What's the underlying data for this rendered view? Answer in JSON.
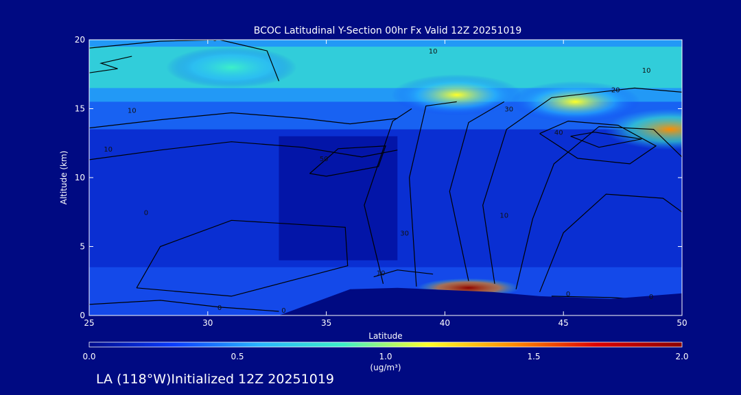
{
  "chart_data": {
    "type": "heatmap",
    "title": "BCOC Latitudinal Y-Section 00hr  Fx Valid 12Z 20251019",
    "xlabel": "Latitude",
    "ylabel": "Altitude (km)",
    "xlim": [
      25,
      50
    ],
    "ylim": [
      0,
      20
    ],
    "xticks": [
      "25",
      "30",
      "35",
      "40",
      "45",
      "50"
    ],
    "yticks": [
      "0",
      "5",
      "10",
      "15",
      "20"
    ],
    "xtick_values": [
      25,
      30,
      35,
      40,
      45,
      50
    ],
    "ytick_values": [
      0,
      5,
      10,
      15,
      20
    ],
    "grid": false,
    "colorbar": {
      "min": 0.0,
      "max": 2.0,
      "ticks": [
        "0.0",
        "0.5",
        "1.0",
        "1.5",
        "2.0"
      ],
      "tick_values": [
        0.0,
        0.5,
        1.0,
        1.5,
        2.0
      ],
      "unit_label": "(ug/m³)",
      "colors": [
        "#000a8c",
        "#0a3cff",
        "#28b4ff",
        "#3cf0c8",
        "#ffff28",
        "#ff8c00",
        "#dc0000",
        "#8c0000"
      ]
    },
    "hotspots": [
      {
        "lat": 41.0,
        "alt": 2.0,
        "value": 1.9
      },
      {
        "lat": 49.5,
        "alt": 13.5,
        "value": 1.4
      },
      {
        "lat": 45.5,
        "alt": 15.5,
        "value": 1.0
      },
      {
        "lat": 31.0,
        "alt": 18.0,
        "value": 0.9
      },
      {
        "lat": 40.5,
        "alt": 16.0,
        "value": 1.0
      }
    ],
    "terrain": [
      [
        25,
        0
      ],
      [
        33,
        0
      ],
      [
        36,
        1.9
      ],
      [
        38,
        2.0
      ],
      [
        42,
        1.7
      ],
      [
        44,
        1.4
      ],
      [
        47,
        1.2
      ],
      [
        50,
        1.6
      ]
    ],
    "contour_labels": [
      {
        "text": "0",
        "lat": 30.3,
        "alt": 19.9
      },
      {
        "text": "10",
        "lat": 39.5,
        "alt": 19.0
      },
      {
        "text": "10",
        "lat": 48.5,
        "alt": 17.6
      },
      {
        "text": "20",
        "lat": 47.2,
        "alt": 16.2
      },
      {
        "text": "10",
        "lat": 26.8,
        "alt": 14.7
      },
      {
        "text": "10",
        "lat": 25.8,
        "alt": 11.9
      },
      {
        "text": "30",
        "lat": 42.7,
        "alt": 14.8
      },
      {
        "text": "40",
        "lat": 44.8,
        "alt": 13.1
      },
      {
        "text": "50",
        "lat": 34.9,
        "alt": 11.2
      },
      {
        "text": "0",
        "lat": 27.4,
        "alt": 7.3
      },
      {
        "text": "30",
        "lat": 38.3,
        "alt": 5.8
      },
      {
        "text": "10",
        "lat": 42.5,
        "alt": 7.1
      },
      {
        "text": "10",
        "lat": 37.3,
        "alt": 2.9
      },
      {
        "text": "0",
        "lat": 30.5,
        "alt": 0.4
      },
      {
        "text": "0",
        "lat": 33.2,
        "alt": 0.2
      },
      {
        "text": "0",
        "lat": 45.2,
        "alt": 1.4
      },
      {
        "text": "0",
        "lat": 48.7,
        "alt": 1.2
      }
    ]
  },
  "footer": {
    "caption": "LA (118°W)Initialized 12Z 20251019"
  }
}
